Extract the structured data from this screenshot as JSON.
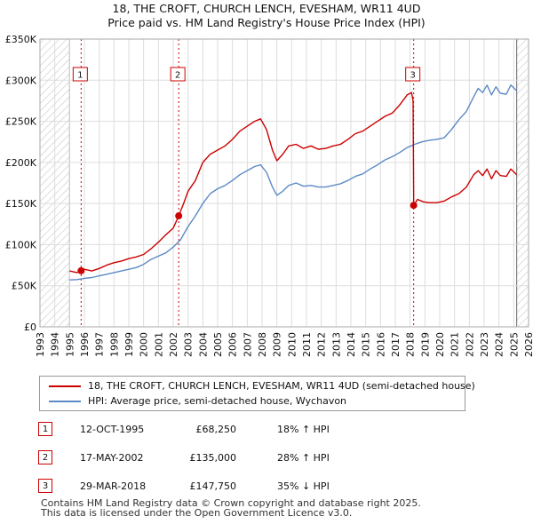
{
  "title_line1": "18, THE CROFT, CHURCH LENCH, EVESHAM, WR11 4UD",
  "title_line2": "Price paid vs. HM Land Registry's House Price Index (HPI)",
  "colors": {
    "property": "#cc0000",
    "hpi": "#5b8ac6",
    "hatch": "#c8c8c8",
    "grid": "#dddddd",
    "marker": "#cc0000"
  },
  "legend": {
    "property_label": "18, THE CROFT, CHURCH LENCH, EVESHAM, WR11 4UD (semi-detached house)",
    "hpi_label": "HPI: Average price, semi-detached house, Wychavon"
  },
  "sales": [
    {
      "num": "1",
      "date": "12-OCT-1995",
      "price": "£68,250",
      "hpi": "18% ↑ HPI"
    },
    {
      "num": "2",
      "date": "17-MAY-2002",
      "price": "£135,000",
      "hpi": "28% ↑ HPI"
    },
    {
      "num": "3",
      "date": "29-MAR-2018",
      "price": "£147,750",
      "hpi": "35% ↓ HPI"
    }
  ],
  "footer_line1": "Contains HM Land Registry data © Crown copyright and database right 2025.",
  "footer_line2": "This data is licensed under the Open Government Licence v3.0.",
  "chart_data": {
    "type": "line",
    "title": "18, THE CROFT, CHURCH LENCH, EVESHAM, WR11 4UD — Price paid vs. HM Land Registry's House Price Index (HPI)",
    "xlabel": "",
    "ylabel": "",
    "xlim": [
      1993,
      2026
    ],
    "ylim": [
      0,
      350000
    ],
    "grid": true,
    "legend_position": "below",
    "x_ticks": [
      "1993",
      "1994",
      "1995",
      "1996",
      "1997",
      "1998",
      "1999",
      "2000",
      "2001",
      "2002",
      "2003",
      "2004",
      "2005",
      "2006",
      "2007",
      "2008",
      "2009",
      "2010",
      "2011",
      "2012",
      "2013",
      "2014",
      "2015",
      "2016",
      "2017",
      "2018",
      "2019",
      "2020",
      "2021",
      "2022",
      "2023",
      "2024",
      "2025",
      "2026"
    ],
    "y_ticks": [
      {
        "value": 0,
        "label": "£0"
      },
      {
        "value": 50000,
        "label": "£50K"
      },
      {
        "value": 100000,
        "label": "£100K"
      },
      {
        "value": 150000,
        "label": "£150K"
      },
      {
        "value": 200000,
        "label": "£200K"
      },
      {
        "value": 250000,
        "label": "£250K"
      },
      {
        "value": 300000,
        "label": "£300K"
      },
      {
        "value": 350000,
        "label": "£350K"
      }
    ],
    "data_start": 1995.0,
    "data_end": 2025.2,
    "sale_markers": [
      {
        "label": "1",
        "x": 1995.78,
        "y": 68250
      },
      {
        "label": "2",
        "x": 2002.37,
        "y": 135000
      },
      {
        "label": "3",
        "x": 2018.24,
        "y": 147750
      }
    ],
    "series": [
      {
        "name": "18, THE CROFT, CHURCH LENCH, EVESHAM, WR11 4UD (semi-detached house)",
        "points": [
          [
            1995.0,
            68000
          ],
          [
            1995.5,
            66000
          ],
          [
            1995.78,
            68250
          ],
          [
            1996.0,
            70000
          ],
          [
            1996.5,
            68000
          ],
          [
            1997.0,
            71000
          ],
          [
            1997.5,
            75000
          ],
          [
            1998.0,
            78000
          ],
          [
            1998.5,
            80000
          ],
          [
            1999.0,
            83000
          ],
          [
            1999.5,
            85000
          ],
          [
            2000.0,
            88000
          ],
          [
            2000.5,
            95000
          ],
          [
            2001.0,
            103000
          ],
          [
            2001.5,
            112000
          ],
          [
            2002.0,
            120000
          ],
          [
            2002.37,
            135000
          ],
          [
            2002.7,
            150000
          ],
          [
            2003.0,
            165000
          ],
          [
            2003.5,
            178000
          ],
          [
            2004.0,
            200000
          ],
          [
            2004.5,
            210000
          ],
          [
            2005.0,
            215000
          ],
          [
            2005.5,
            220000
          ],
          [
            2006.0,
            228000
          ],
          [
            2006.5,
            238000
          ],
          [
            2007.0,
            244000
          ],
          [
            2007.5,
            250000
          ],
          [
            2007.9,
            253000
          ],
          [
            2008.3,
            240000
          ],
          [
            2008.7,
            215000
          ],
          [
            2009.0,
            202000
          ],
          [
            2009.4,
            210000
          ],
          [
            2009.8,
            220000
          ],
          [
            2010.3,
            222000
          ],
          [
            2010.8,
            217000
          ],
          [
            2011.3,
            220000
          ],
          [
            2011.8,
            216000
          ],
          [
            2012.3,
            217000
          ],
          [
            2012.8,
            220000
          ],
          [
            2013.3,
            222000
          ],
          [
            2013.8,
            228000
          ],
          [
            2014.3,
            235000
          ],
          [
            2014.8,
            238000
          ],
          [
            2015.3,
            244000
          ],
          [
            2015.8,
            250000
          ],
          [
            2016.3,
            256000
          ],
          [
            2016.8,
            260000
          ],
          [
            2017.3,
            270000
          ],
          [
            2017.8,
            282000
          ],
          [
            2018.1,
            285000
          ],
          [
            2018.2,
            275000
          ],
          [
            2018.24,
            147750
          ],
          [
            2018.5,
            155000
          ],
          [
            2018.9,
            152000
          ],
          [
            2019.3,
            151000
          ],
          [
            2019.8,
            151000
          ],
          [
            2020.3,
            153000
          ],
          [
            2020.8,
            158000
          ],
          [
            2021.3,
            162000
          ],
          [
            2021.8,
            170000
          ],
          [
            2022.3,
            185000
          ],
          [
            2022.6,
            190000
          ],
          [
            2022.9,
            184000
          ],
          [
            2023.2,
            192000
          ],
          [
            2023.5,
            180000
          ],
          [
            2023.8,
            190000
          ],
          [
            2024.1,
            184000
          ],
          [
            2024.5,
            183000
          ],
          [
            2024.8,
            192000
          ],
          [
            2025.2,
            185000
          ]
        ]
      },
      {
        "name": "HPI: Average price, semi-detached house, Wychavon",
        "points": [
          [
            1995.0,
            57000
          ],
          [
            1995.5,
            57500
          ],
          [
            1996.0,
            59000
          ],
          [
            1996.5,
            60000
          ],
          [
            1997.0,
            62000
          ],
          [
            1997.5,
            64000
          ],
          [
            1998.0,
            66000
          ],
          [
            1998.5,
            68000
          ],
          [
            1999.0,
            70000
          ],
          [
            1999.5,
            72000
          ],
          [
            2000.0,
            76000
          ],
          [
            2000.5,
            82000
          ],
          [
            2001.0,
            86000
          ],
          [
            2001.5,
            90000
          ],
          [
            2002.0,
            97000
          ],
          [
            2002.5,
            106000
          ],
          [
            2003.0,
            122000
          ],
          [
            2003.5,
            135000
          ],
          [
            2004.0,
            150000
          ],
          [
            2004.5,
            162000
          ],
          [
            2005.0,
            168000
          ],
          [
            2005.5,
            172000
          ],
          [
            2006.0,
            178000
          ],
          [
            2006.5,
            185000
          ],
          [
            2007.0,
            190000
          ],
          [
            2007.5,
            195000
          ],
          [
            2007.9,
            197000
          ],
          [
            2008.3,
            188000
          ],
          [
            2008.7,
            170000
          ],
          [
            2009.0,
            160000
          ],
          [
            2009.4,
            165000
          ],
          [
            2009.8,
            172000
          ],
          [
            2010.3,
            175000
          ],
          [
            2010.8,
            171000
          ],
          [
            2011.3,
            172000
          ],
          [
            2011.8,
            170000
          ],
          [
            2012.3,
            170000
          ],
          [
            2012.8,
            172000
          ],
          [
            2013.3,
            174000
          ],
          [
            2013.8,
            178000
          ],
          [
            2014.3,
            183000
          ],
          [
            2014.8,
            186000
          ],
          [
            2015.3,
            192000
          ],
          [
            2015.8,
            197000
          ],
          [
            2016.3,
            203000
          ],
          [
            2016.8,
            207000
          ],
          [
            2017.3,
            212000
          ],
          [
            2017.8,
            218000
          ],
          [
            2018.3,
            222000
          ],
          [
            2018.8,
            225000
          ],
          [
            2019.3,
            227000
          ],
          [
            2019.8,
            228000
          ],
          [
            2020.3,
            230000
          ],
          [
            2020.8,
            240000
          ],
          [
            2021.3,
            252000
          ],
          [
            2021.8,
            262000
          ],
          [
            2022.3,
            280000
          ],
          [
            2022.6,
            290000
          ],
          [
            2022.9,
            285000
          ],
          [
            2023.2,
            294000
          ],
          [
            2023.5,
            282000
          ],
          [
            2023.8,
            292000
          ],
          [
            2024.1,
            284000
          ],
          [
            2024.5,
            283000
          ],
          [
            2024.8,
            294000
          ],
          [
            2025.2,
            287000
          ]
        ]
      }
    ]
  }
}
